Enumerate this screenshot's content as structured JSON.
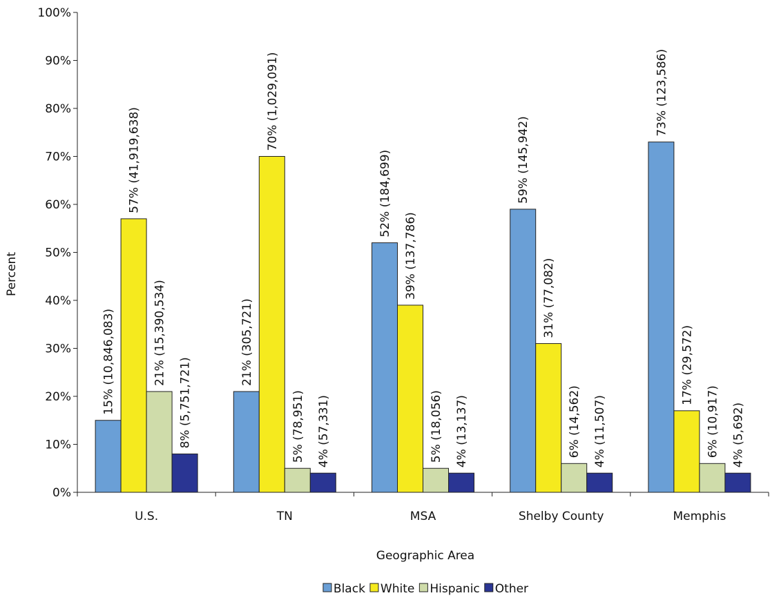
{
  "chart_data": {
    "type": "bar",
    "title": "",
    "xlabel": "Geographic Area",
    "ylabel": "Percent",
    "ylim": [
      0,
      100
    ],
    "y_ticks": [
      "0%",
      "10%",
      "20%",
      "30%",
      "40%",
      "50%",
      "60%",
      "70%",
      "80%",
      "90%",
      "100%"
    ],
    "grid": false,
    "legend_position": "bottom",
    "categories": [
      "U.S.",
      "TN",
      "MSA",
      "Shelby County",
      "Memphis"
    ],
    "series": [
      {
        "name": "Black",
        "color": "#6a9fd6",
        "values": [
          15,
          21,
          52,
          59,
          73
        ],
        "labels": [
          "15% (10,846,083)",
          "21% (305,721)",
          "52% (184,699)",
          "59% (145,942)",
          "73% (123,586)"
        ]
      },
      {
        "name": "White",
        "color": "#f5ea1e",
        "values": [
          57,
          70,
          39,
          31,
          17
        ],
        "labels": [
          "57% (41,919,638)",
          "70% (1,029,091)",
          "39% (137,786)",
          "31% (77,082)",
          "17% (29,572)"
        ]
      },
      {
        "name": "Hispanic",
        "color": "#cfdcaa",
        "values": [
          21,
          5,
          5,
          6,
          6
        ],
        "labels": [
          "21% (15,390,534)",
          "5% (78,951)",
          "5% (18,056)",
          "6% (14,562)",
          "6% (10,917)"
        ]
      },
      {
        "name": "Other",
        "color": "#2a3593",
        "values": [
          8,
          4,
          4,
          4,
          4
        ],
        "labels": [
          "8% (5,751,721)",
          "4% (57,331)",
          "4% (13,137)",
          "4% (11,507)",
          "4% (5,692)"
        ]
      }
    ]
  }
}
